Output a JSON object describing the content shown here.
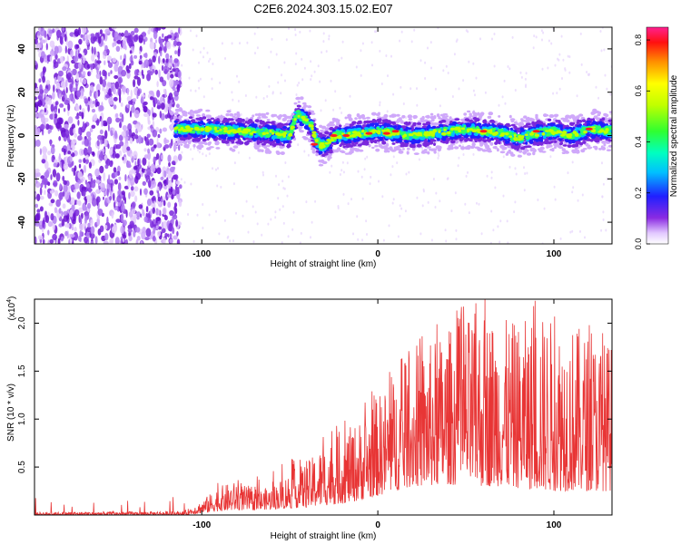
{
  "figure_title": "C2E6.2024.303.15.02.E07",
  "chart_data": [
    {
      "type": "heatmap",
      "name": "spectrogram",
      "xlabel": "Height of straight line (km)",
      "ylabel": "Frequency (Hz)",
      "xlim": [
        -195,
        133
      ],
      "ylim": [
        -50,
        50
      ],
      "xticks": [
        -100,
        0,
        100
      ],
      "xtick_labels": [
        "-100",
        "0",
        "100"
      ],
      "yticks": [
        -40,
        -20,
        0,
        20,
        40
      ],
      "ytick_labels": [
        "-40",
        "-20",
        "0",
        "20",
        "40"
      ],
      "signal_band": {
        "x": [
          -115,
          -100,
          -80,
          -60,
          -50,
          -46,
          -42,
          -38,
          -35,
          -32,
          -28,
          -24,
          -20,
          -10,
          0,
          10,
          20,
          30,
          40,
          50,
          60,
          70,
          80,
          90,
          100,
          110,
          120,
          133
        ],
        "freq": [
          3,
          3,
          2,
          1,
          0,
          10,
          8,
          5,
          -2,
          -5,
          -3,
          0,
          0,
          1,
          2,
          1,
          0,
          1,
          2,
          3,
          2,
          1,
          -1,
          1,
          2,
          0,
          3,
          2
        ]
      },
      "colorbar": {
        "label": "Normalized spectral amplitude",
        "range": [
          0,
          0.85
        ],
        "ticks": [
          0.0,
          0.2,
          0.4,
          0.6,
          0.8
        ],
        "tick_labels": [
          "0.0",
          "0.2",
          "0.4",
          "0.6",
          "0.8"
        ]
      }
    },
    {
      "type": "line",
      "name": "snr",
      "xlabel": "Height of straight line (km)",
      "ylabel": "SNR (10 * v/v)",
      "multiplier": "(x10",
      "multiplier_exp": "4",
      "color": "#e83535",
      "xlim": [
        -195,
        133
      ],
      "ylim": [
        0,
        2.25
      ],
      "xticks": [
        -100,
        0,
        100
      ],
      "xtick_labels": [
        "-100",
        "0",
        "100"
      ],
      "yticks": [
        0.5,
        1.0,
        1.5,
        2.0
      ],
      "ytick_labels": [
        "0.5",
        "1.0",
        "1.5",
        "2.0"
      ],
      "envelope": {
        "x": [
          -195,
          -110,
          -100,
          -90,
          -80,
          -70,
          -60,
          -50,
          -40,
          -30,
          -20,
          -10,
          0,
          10,
          20,
          30,
          40,
          50,
          60,
          70,
          80,
          90,
          100,
          110,
          120,
          133
        ],
        "lower": [
          0.0,
          0.0,
          0.02,
          0.04,
          0.05,
          0.05,
          0.06,
          0.07,
          0.08,
          0.1,
          0.12,
          0.15,
          0.2,
          0.25,
          0.3,
          0.3,
          0.32,
          0.3,
          0.3,
          0.3,
          0.28,
          0.26,
          0.25,
          0.25,
          0.25,
          0.25
        ],
        "upper": [
          0.03,
          0.04,
          0.15,
          0.3,
          0.35,
          0.25,
          0.3,
          0.45,
          0.55,
          0.75,
          0.85,
          1.0,
          1.25,
          1.45,
          1.65,
          1.8,
          1.95,
          2.05,
          2.15,
          2.05,
          2.0,
          2.1,
          2.05,
          2.0,
          1.9,
          1.8
        ]
      }
    }
  ]
}
